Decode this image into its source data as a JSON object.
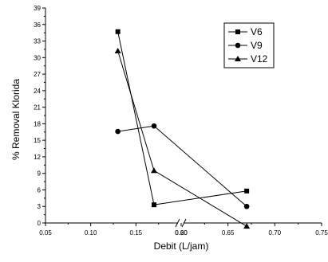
{
  "chart_data": {
    "type": "line",
    "title": "",
    "xlabel": "Debit (L/jam)",
    "ylabel": "% Removal Klorida",
    "x_axis": {
      "broken": true,
      "segments": [
        {
          "range": [
            0.05,
            0.2
          ],
          "ticks": [
            "0.05",
            "0.10",
            "0.15",
            "0.20"
          ]
        },
        {
          "range": [
            0.6,
            0.75
          ],
          "ticks": [
            "0.60",
            "0.65",
            "0.70",
            "0.75"
          ]
        }
      ]
    },
    "ylim": [
      0,
      39
    ],
    "y_ticks": [
      "0",
      "3",
      "6",
      "9",
      "12",
      "15",
      "18",
      "21",
      "24",
      "27",
      "30",
      "33",
      "36",
      "39"
    ],
    "grid": false,
    "legend_position": "top-right",
    "series": [
      {
        "name": "V6",
        "marker": "square",
        "points": [
          {
            "x": 0.13,
            "y": 34.7
          },
          {
            "x": 0.17,
            "y": 3.3
          },
          {
            "x": 0.67,
            "y": 5.8
          }
        ]
      },
      {
        "name": "V9",
        "marker": "circle",
        "points": [
          {
            "x": 0.13,
            "y": 16.6
          },
          {
            "x": 0.17,
            "y": 17.6
          },
          {
            "x": 0.67,
            "y": 3.0
          }
        ]
      },
      {
        "name": "V12",
        "marker": "triangle",
        "points": [
          {
            "x": 0.13,
            "y": 31.2
          },
          {
            "x": 0.17,
            "y": 9.5
          },
          {
            "x": 0.67,
            "y": -0.6
          }
        ]
      }
    ]
  }
}
